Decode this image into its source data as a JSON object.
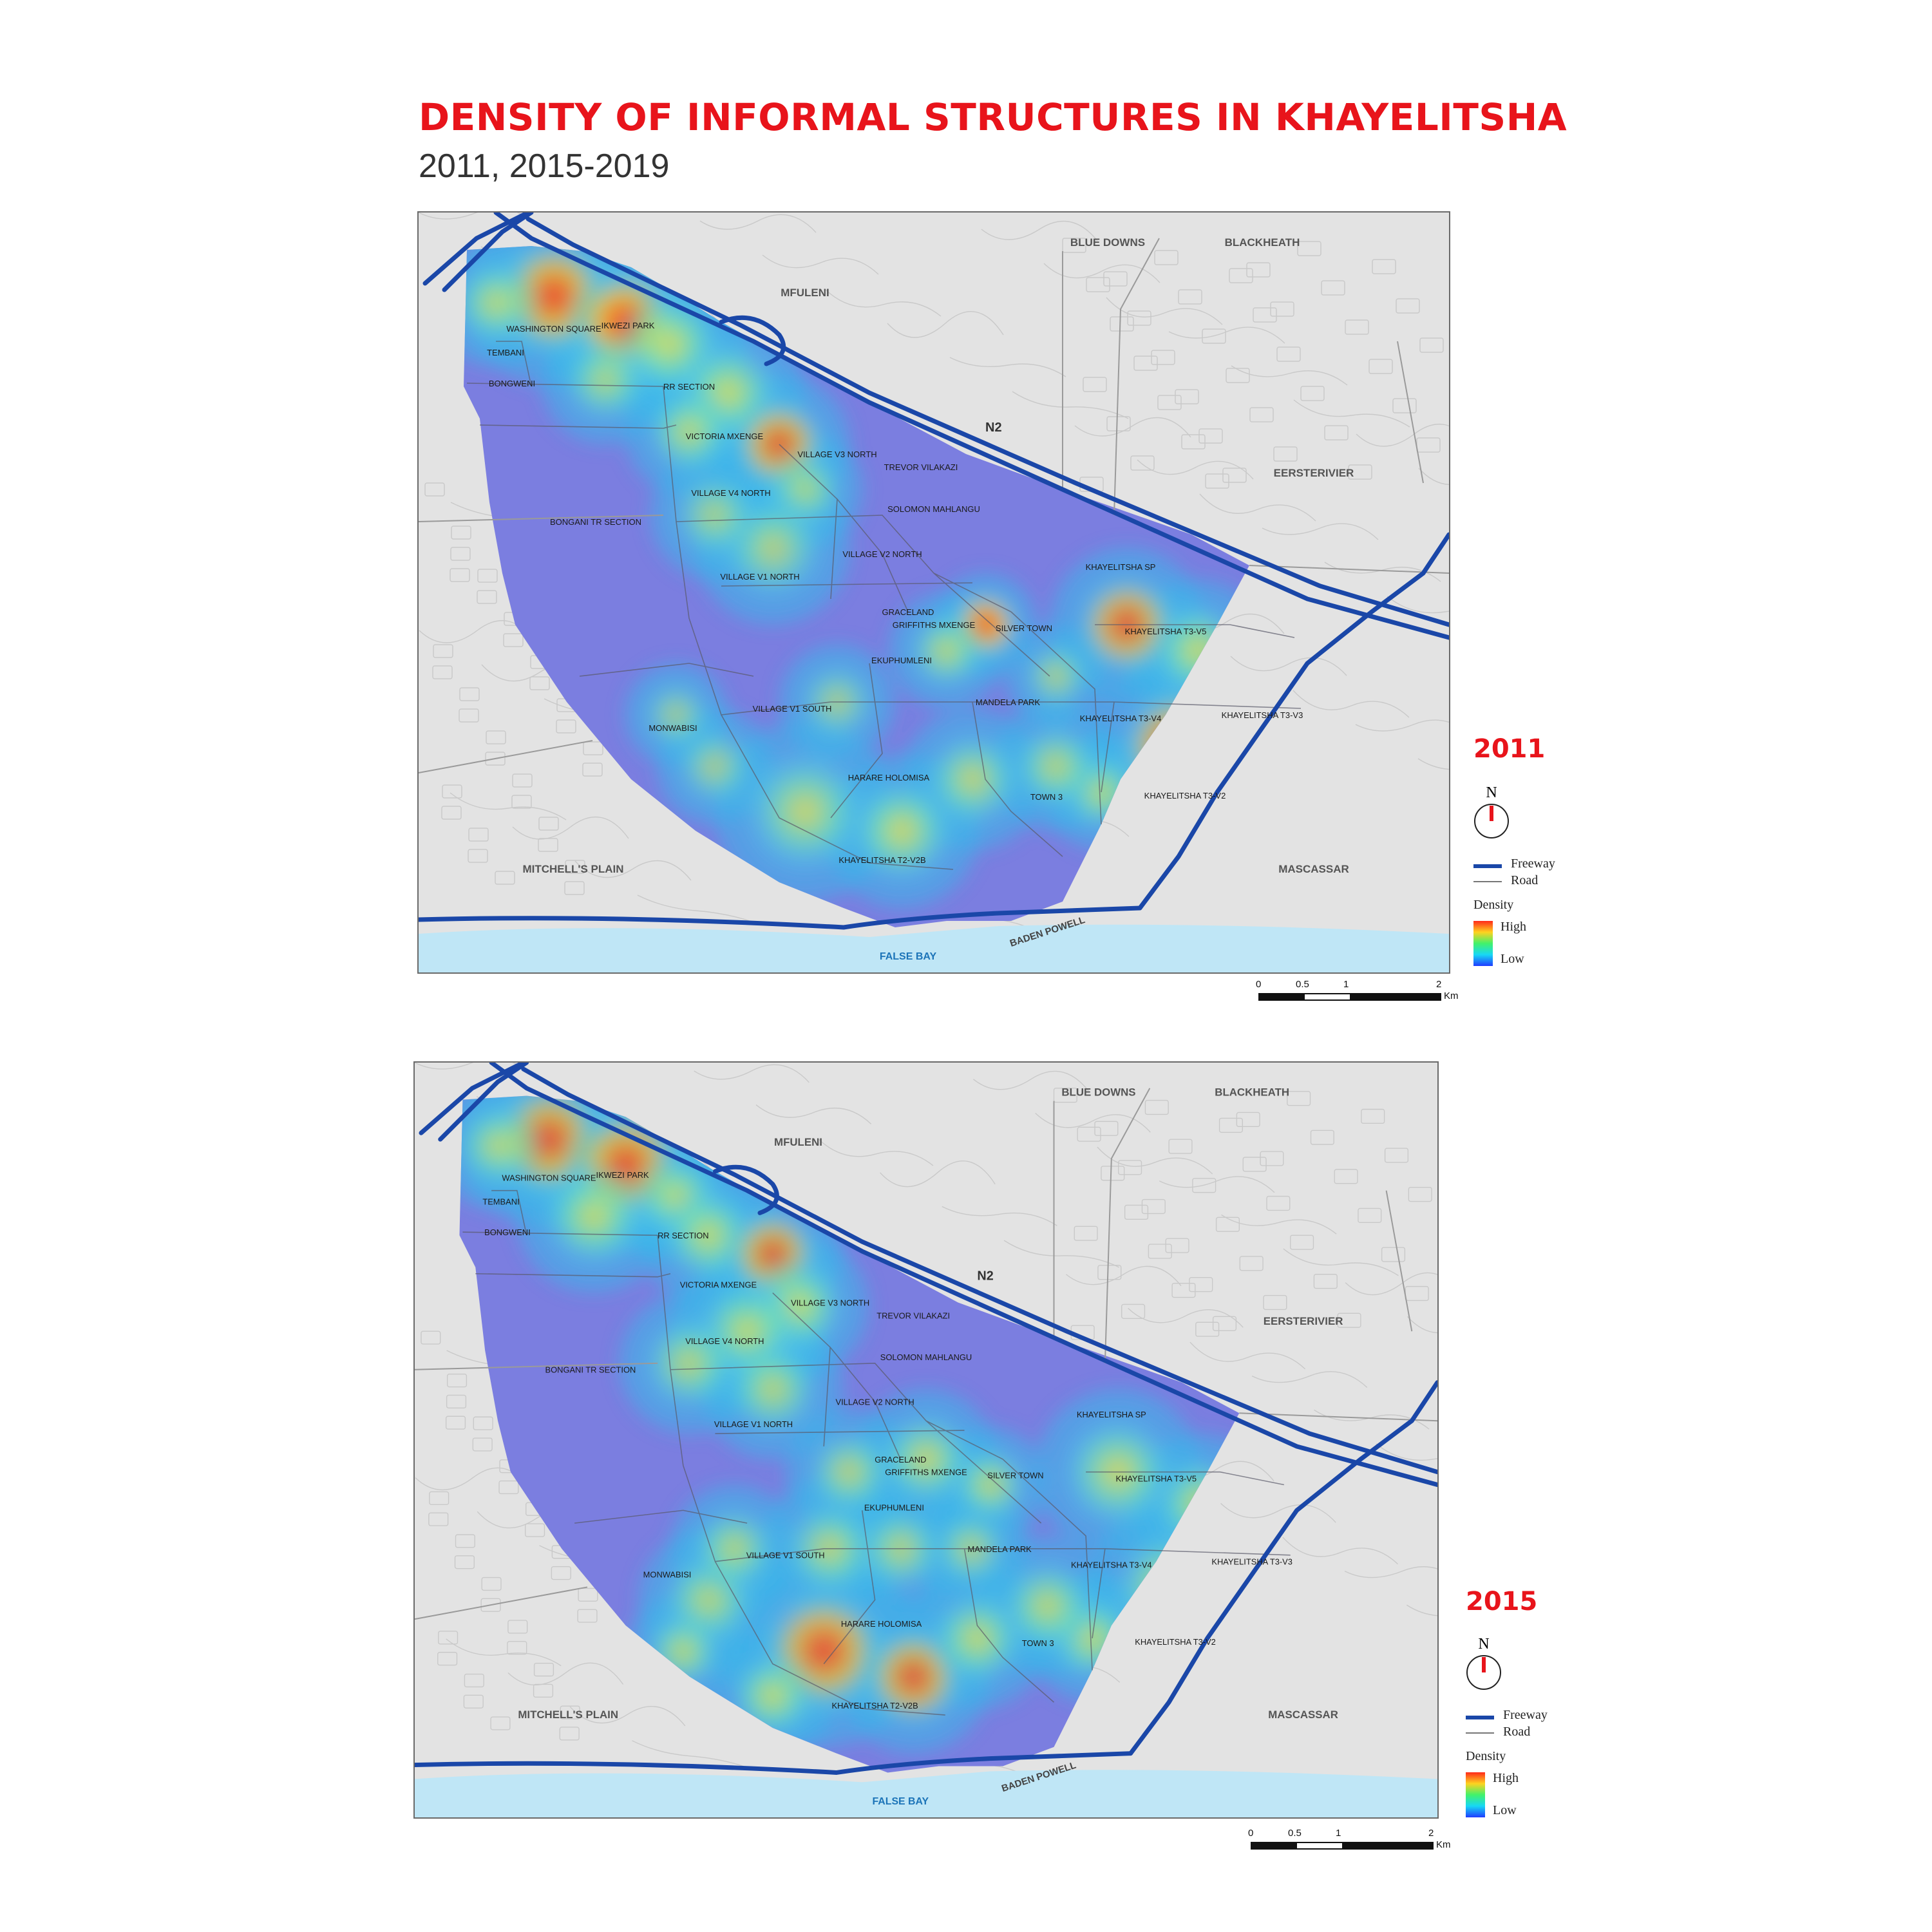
{
  "header": {
    "title": "DENSITY OF INFORMAL STRUCTURES IN KHAYELITSHA",
    "subtitle": "2011, 2015-2019"
  },
  "colors": {
    "accent_red": "#e8141b",
    "freeway": "#1a47a8",
    "low_density": "#7b7ee0",
    "water": "#bfe6f6",
    "land_grey": "#e3e3e3"
  },
  "map_labels": {
    "places": [
      "BLUE DOWNS",
      "BLACKHEATH",
      "MFULENI",
      "EERSTERIVIER",
      "MITCHELL'S PLAIN",
      "MASCASSAR"
    ],
    "roads": [
      "N2",
      "BADEN POWELL"
    ],
    "water": "FALSE BAY",
    "sections": [
      "WASHINGTON SQUARE",
      "IKWEZI PARK",
      "TEMBANI",
      "BONGWENI",
      "RR SECTION",
      "VICTORIA MXENGE",
      "VILLAGE V3 NORTH",
      "TREVOR VILAKAZI",
      "VILLAGE V4 NORTH",
      "SOLOMON MAHLANGU",
      "BONGANI TR SECTION",
      "VILLAGE V2 NORTH",
      "VILLAGE V1 NORTH",
      "KHAYELITSHA SP",
      "GRACELAND",
      "GRIFFITHS MXENGE",
      "SILVER TOWN",
      "KHAYELITSHA T3-V5",
      "EKUPHUMLENI",
      "VILLAGE V1 SOUTH",
      "MANDELA PARK",
      "KHAYELITSHA T3-V4",
      "KHAYELITSHA T3-V3",
      "MONWABISI",
      "HARARE HOLOMISA",
      "TOWN 3",
      "KHAYELITSHA T3-V2",
      "KHAYELITSHA T2-V2B"
    ]
  },
  "legend": {
    "north": "N",
    "freeway": "Freeway",
    "road": "Road",
    "density": "Density",
    "high": "High",
    "low": "Low"
  },
  "scale": {
    "ticks": [
      "0",
      "0.5",
      "1",
      "2"
    ],
    "unit": "Km"
  },
  "maps": [
    {
      "year": "2011"
    },
    {
      "year": "2015"
    }
  ]
}
